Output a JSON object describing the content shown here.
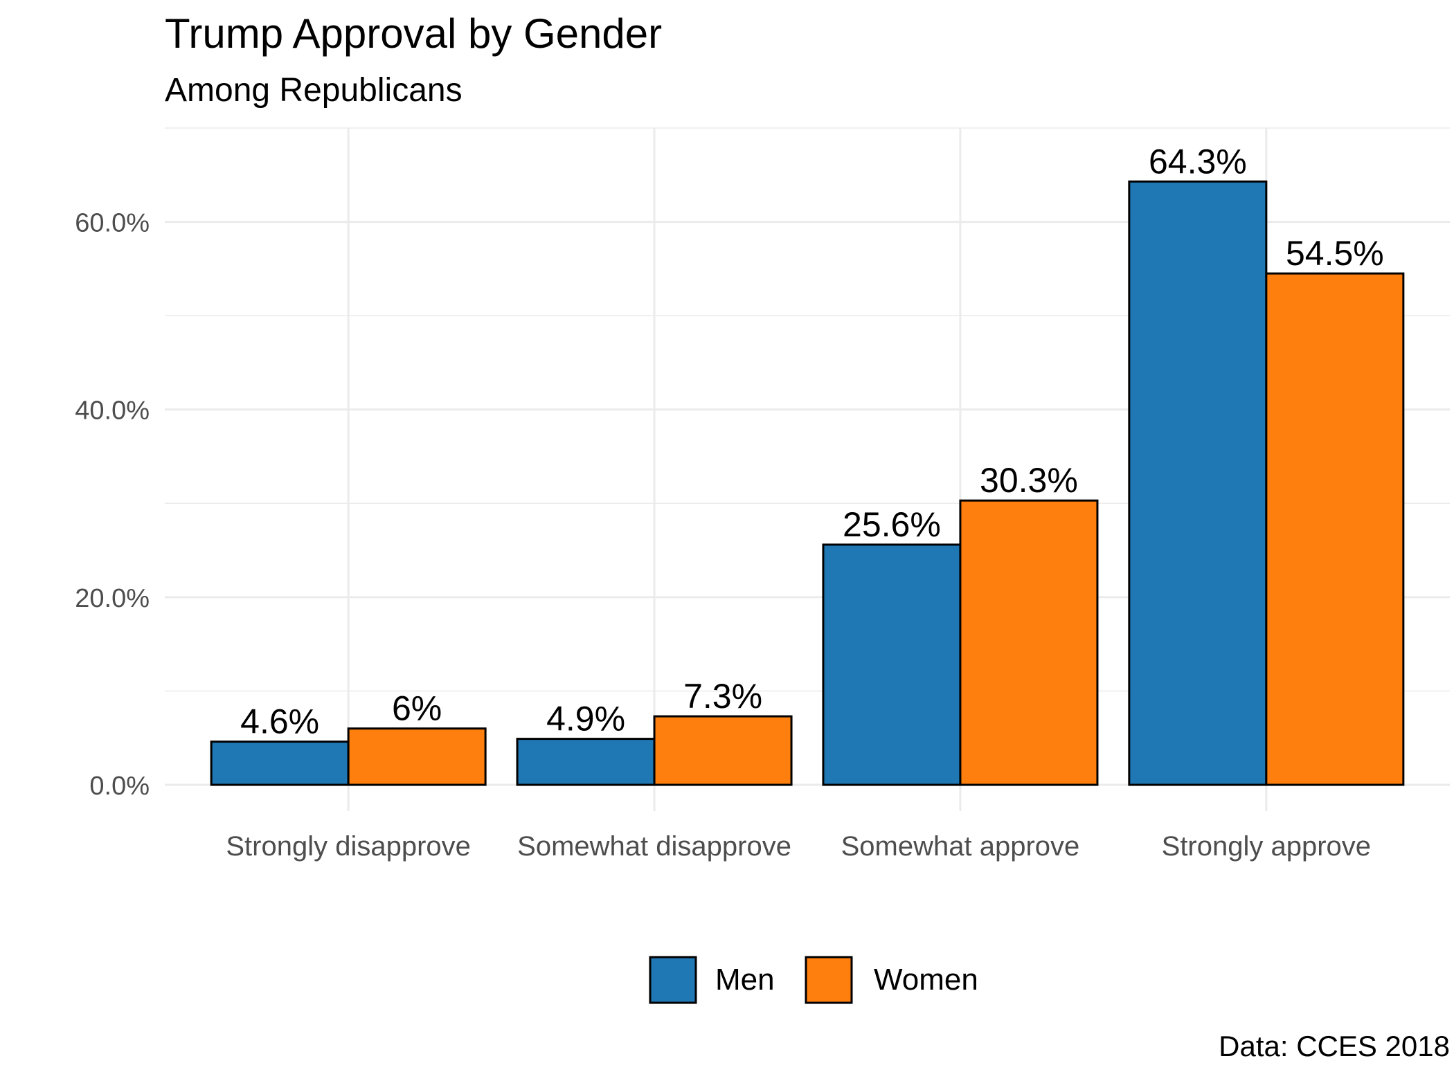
{
  "chart_data": {
    "type": "bar",
    "title": "Trump Approval by Gender",
    "subtitle": "Among Republicans",
    "caption": "Data: CCES 2018",
    "categories": [
      "Strongly disapprove",
      "Somewhat disapprove",
      "Somewhat approve",
      "Strongly approve"
    ],
    "series": [
      {
        "name": "Men",
        "color": "#1f78b4",
        "values": [
          4.6,
          4.9,
          25.6,
          64.3
        ],
        "labels": [
          "4.6%",
          "4.9%",
          "25.6%",
          "64.3%"
        ]
      },
      {
        "name": "Women",
        "color": "#ff7f0e",
        "values": [
          6.0,
          7.3,
          30.3,
          54.5
        ],
        "labels": [
          "6%",
          "7.3%",
          "30.3%",
          "54.5%"
        ]
      }
    ],
    "yticks": [
      0,
      20,
      40,
      60
    ],
    "ytick_labels": [
      "0.0%",
      "20.0%",
      "40.0%",
      "60.0%"
    ],
    "ylim": [
      -2.8,
      70.0
    ],
    "grid": true,
    "legend_position": "bottom"
  }
}
